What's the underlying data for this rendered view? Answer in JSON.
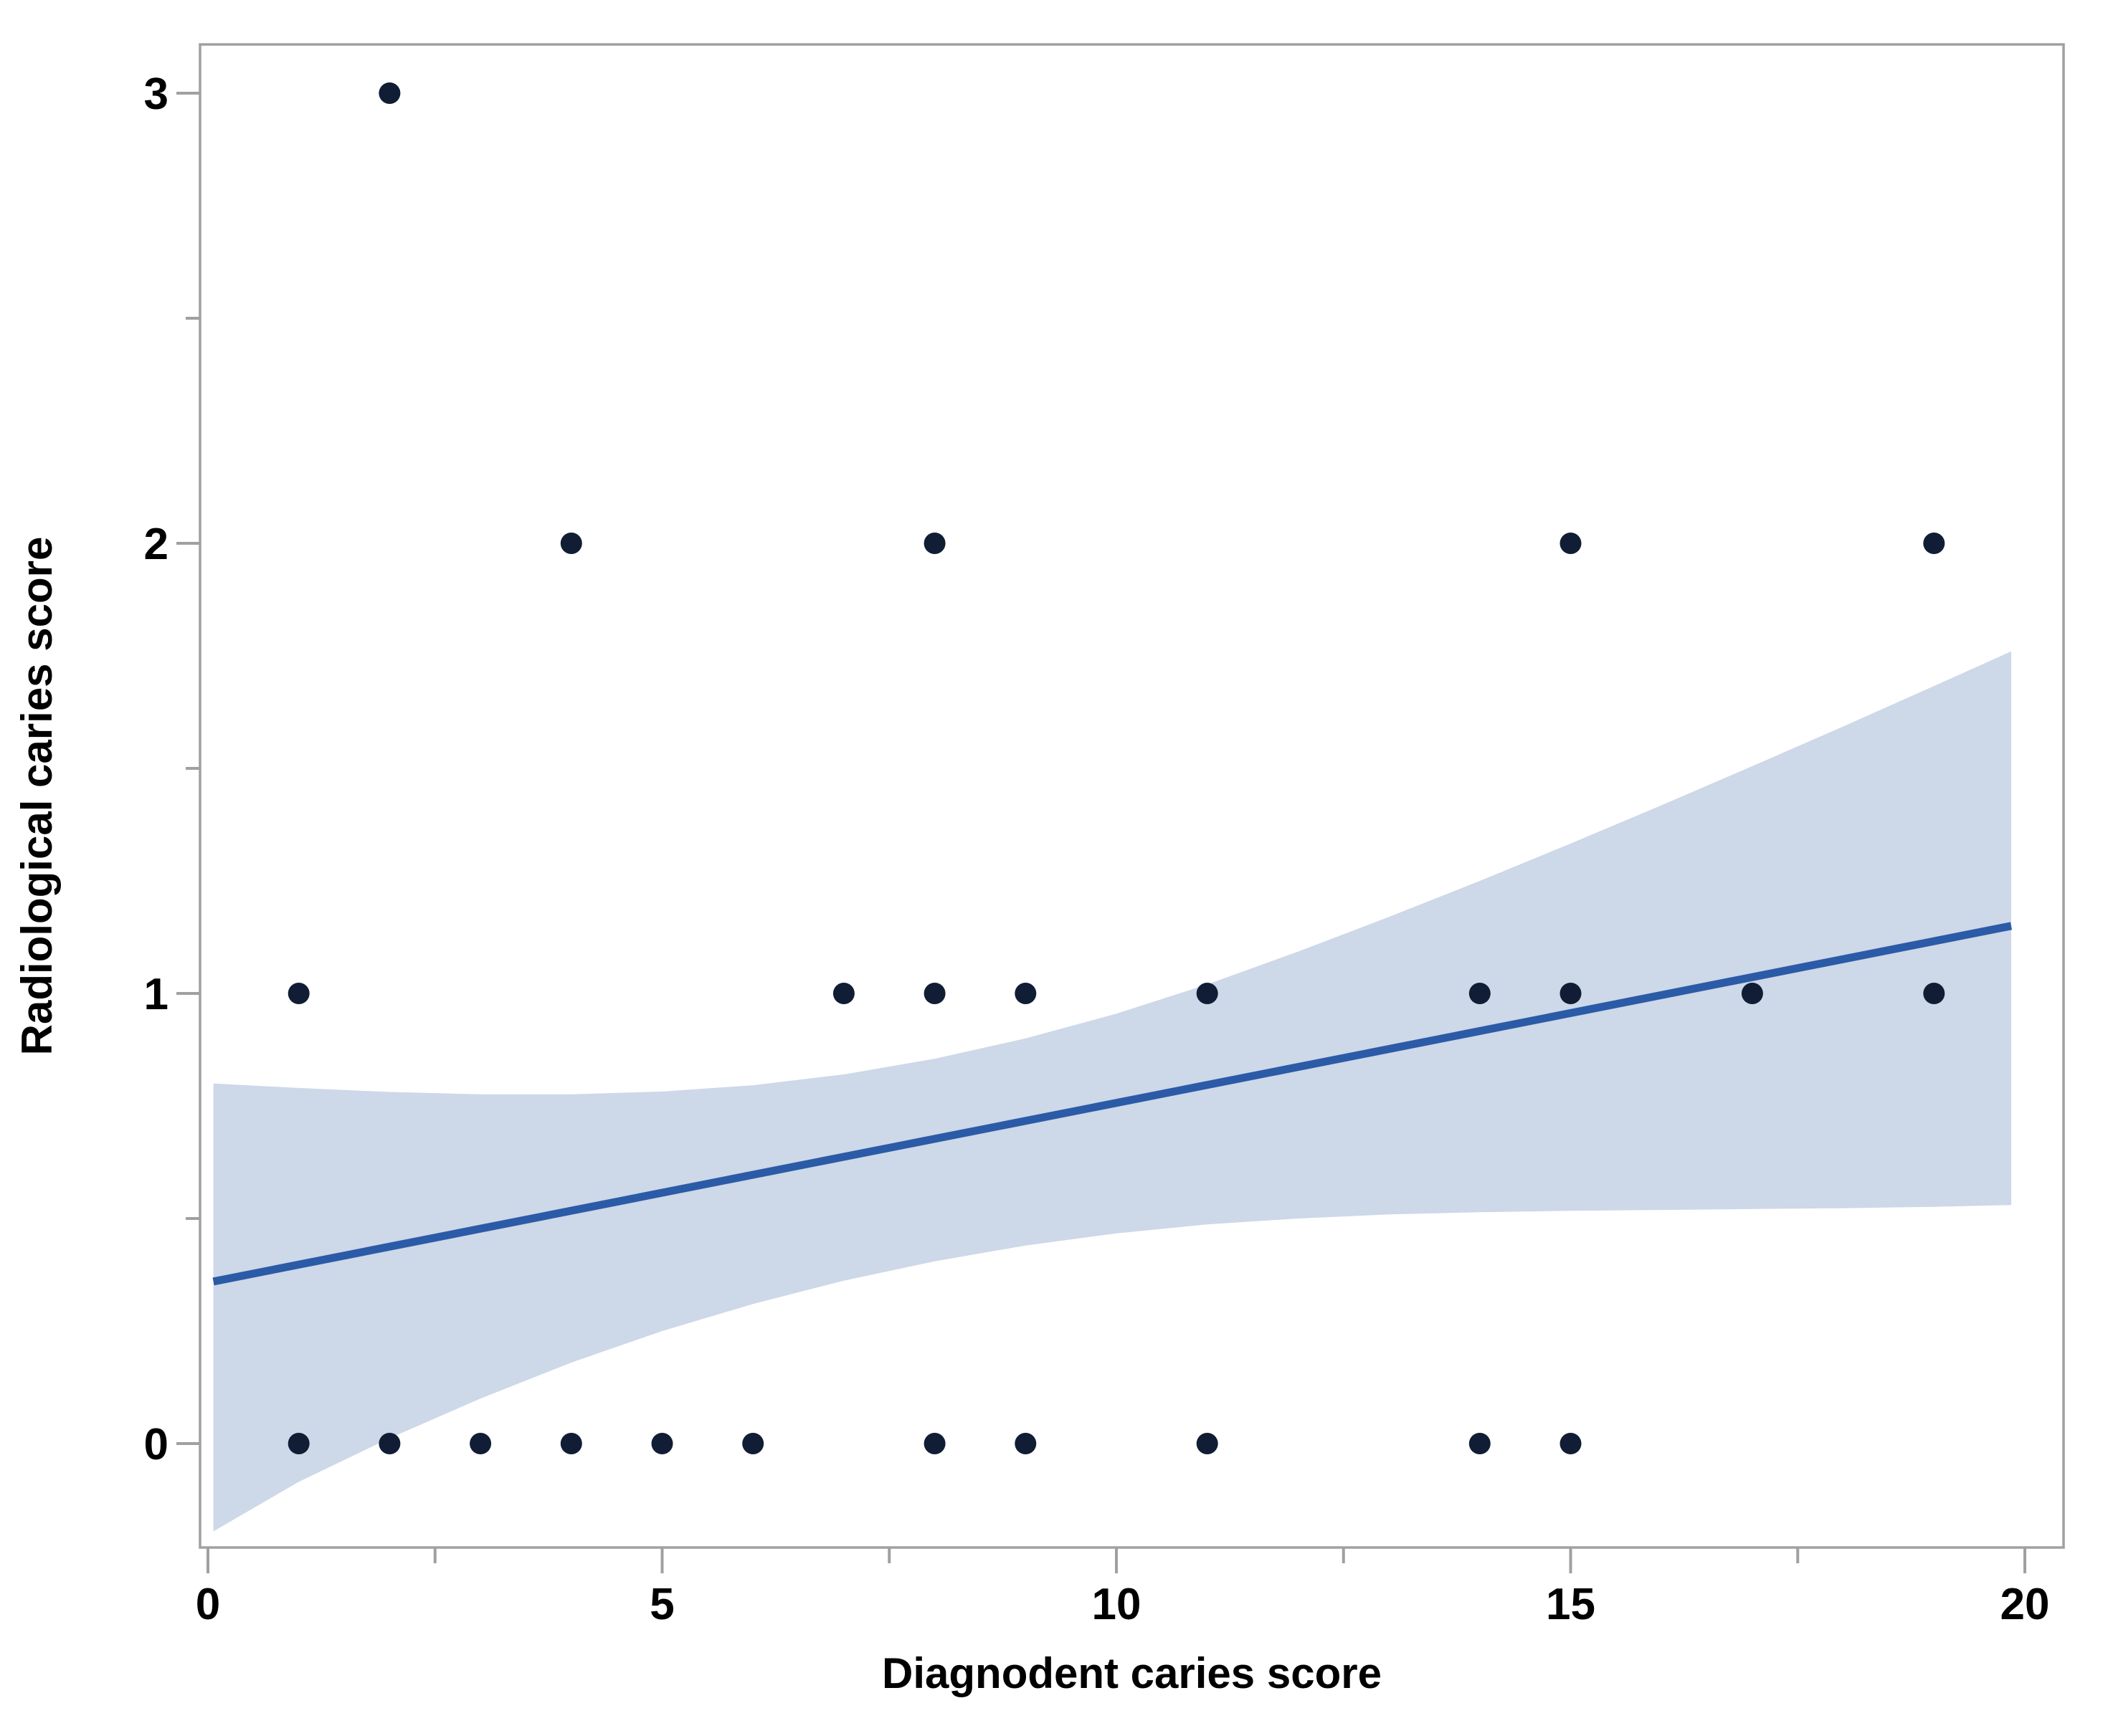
{
  "figure": {
    "background": "#ffffff"
  },
  "chart_data": {
    "type": "scatter",
    "title": "",
    "xlabel": "Diagnodent caries score",
    "ylabel": "Radiological caries score",
    "xlim": [
      0,
      20
    ],
    "ylim": [
      -0.35,
      3.3
    ],
    "grid": false,
    "legend": "none",
    "x_major_ticks": [
      0,
      5,
      10,
      15,
      20
    ],
    "x_tick_labels": [
      "0",
      "5",
      "10",
      "15",
      "20"
    ],
    "x_minor_ticks": [
      2.5,
      7.5,
      12.5,
      17.5
    ],
    "y_major_ticks": [
      0,
      1,
      2,
      3
    ],
    "y_tick_labels": [
      "0",
      "1",
      "2",
      "3"
    ],
    "y_minor_ticks": [
      0.5,
      1.5,
      2.5
    ],
    "points": [
      {
        "x": 1,
        "y": 0
      },
      {
        "x": 2,
        "y": 0
      },
      {
        "x": 3,
        "y": 0
      },
      {
        "x": 4,
        "y": 0
      },
      {
        "x": 5,
        "y": 0
      },
      {
        "x": 6,
        "y": 0
      },
      {
        "x": 8,
        "y": 0
      },
      {
        "x": 9,
        "y": 0
      },
      {
        "x": 11,
        "y": 0
      },
      {
        "x": 14,
        "y": 0
      },
      {
        "x": 15,
        "y": 0
      },
      {
        "x": 1,
        "y": 1
      },
      {
        "x": 7,
        "y": 1
      },
      {
        "x": 8,
        "y": 1
      },
      {
        "x": 9,
        "y": 1
      },
      {
        "x": 11,
        "y": 1
      },
      {
        "x": 14,
        "y": 1
      },
      {
        "x": 15,
        "y": 1
      },
      {
        "x": 17,
        "y": 1
      },
      {
        "x": 19,
        "y": 1
      },
      {
        "x": 4,
        "y": 2
      },
      {
        "x": 8,
        "y": 2
      },
      {
        "x": 15,
        "y": 2
      },
      {
        "x": 19,
        "y": 2
      },
      {
        "x": 2,
        "y": 3
      }
    ],
    "regression_line": {
      "x1": 0.06,
      "y1": 0.36,
      "x2": 19.85,
      "y2": 1.15
    },
    "confidence_band": [
      {
        "x": 0.06,
        "upper": 0.8,
        "lower": -0.195
      },
      {
        "x": 1,
        "upper": 0.79,
        "lower": -0.085
      },
      {
        "x": 2,
        "upper": 0.781,
        "lower": 0.012
      },
      {
        "x": 3,
        "upper": 0.776,
        "lower": 0.1
      },
      {
        "x": 4,
        "upper": 0.776,
        "lower": 0.18
      },
      {
        "x": 5,
        "upper": 0.782,
        "lower": 0.25
      },
      {
        "x": 6,
        "upper": 0.796,
        "lower": 0.31
      },
      {
        "x": 7,
        "upper": 0.82,
        "lower": 0.362
      },
      {
        "x": 8,
        "upper": 0.855,
        "lower": 0.405
      },
      {
        "x": 9,
        "upper": 0.9,
        "lower": 0.44
      },
      {
        "x": 10,
        "upper": 0.955,
        "lower": 0.467
      },
      {
        "x": 11,
        "upper": 1.02,
        "lower": 0.487
      },
      {
        "x": 12,
        "upper": 1.093,
        "lower": 0.5
      },
      {
        "x": 13,
        "upper": 1.17,
        "lower": 0.509
      },
      {
        "x": 14,
        "upper": 1.25,
        "lower": 0.514
      },
      {
        "x": 15,
        "upper": 1.333,
        "lower": 0.517
      },
      {
        "x": 16,
        "upper": 1.418,
        "lower": 0.519
      },
      {
        "x": 17,
        "upper": 1.505,
        "lower": 0.521
      },
      {
        "x": 18,
        "upper": 1.593,
        "lower": 0.523
      },
      {
        "x": 19,
        "upper": 1.683,
        "lower": 0.526
      },
      {
        "x": 19.85,
        "upper": 1.76,
        "lower": 0.53
      }
    ],
    "colors": {
      "point": "#101d35",
      "line": "#2b5ba7",
      "band": "#cdd8e8",
      "axis": "#a0a0a0",
      "text": "#000000",
      "background": "#ffffff"
    },
    "marker": {
      "shape": "circle",
      "radius_px": 15
    }
  }
}
